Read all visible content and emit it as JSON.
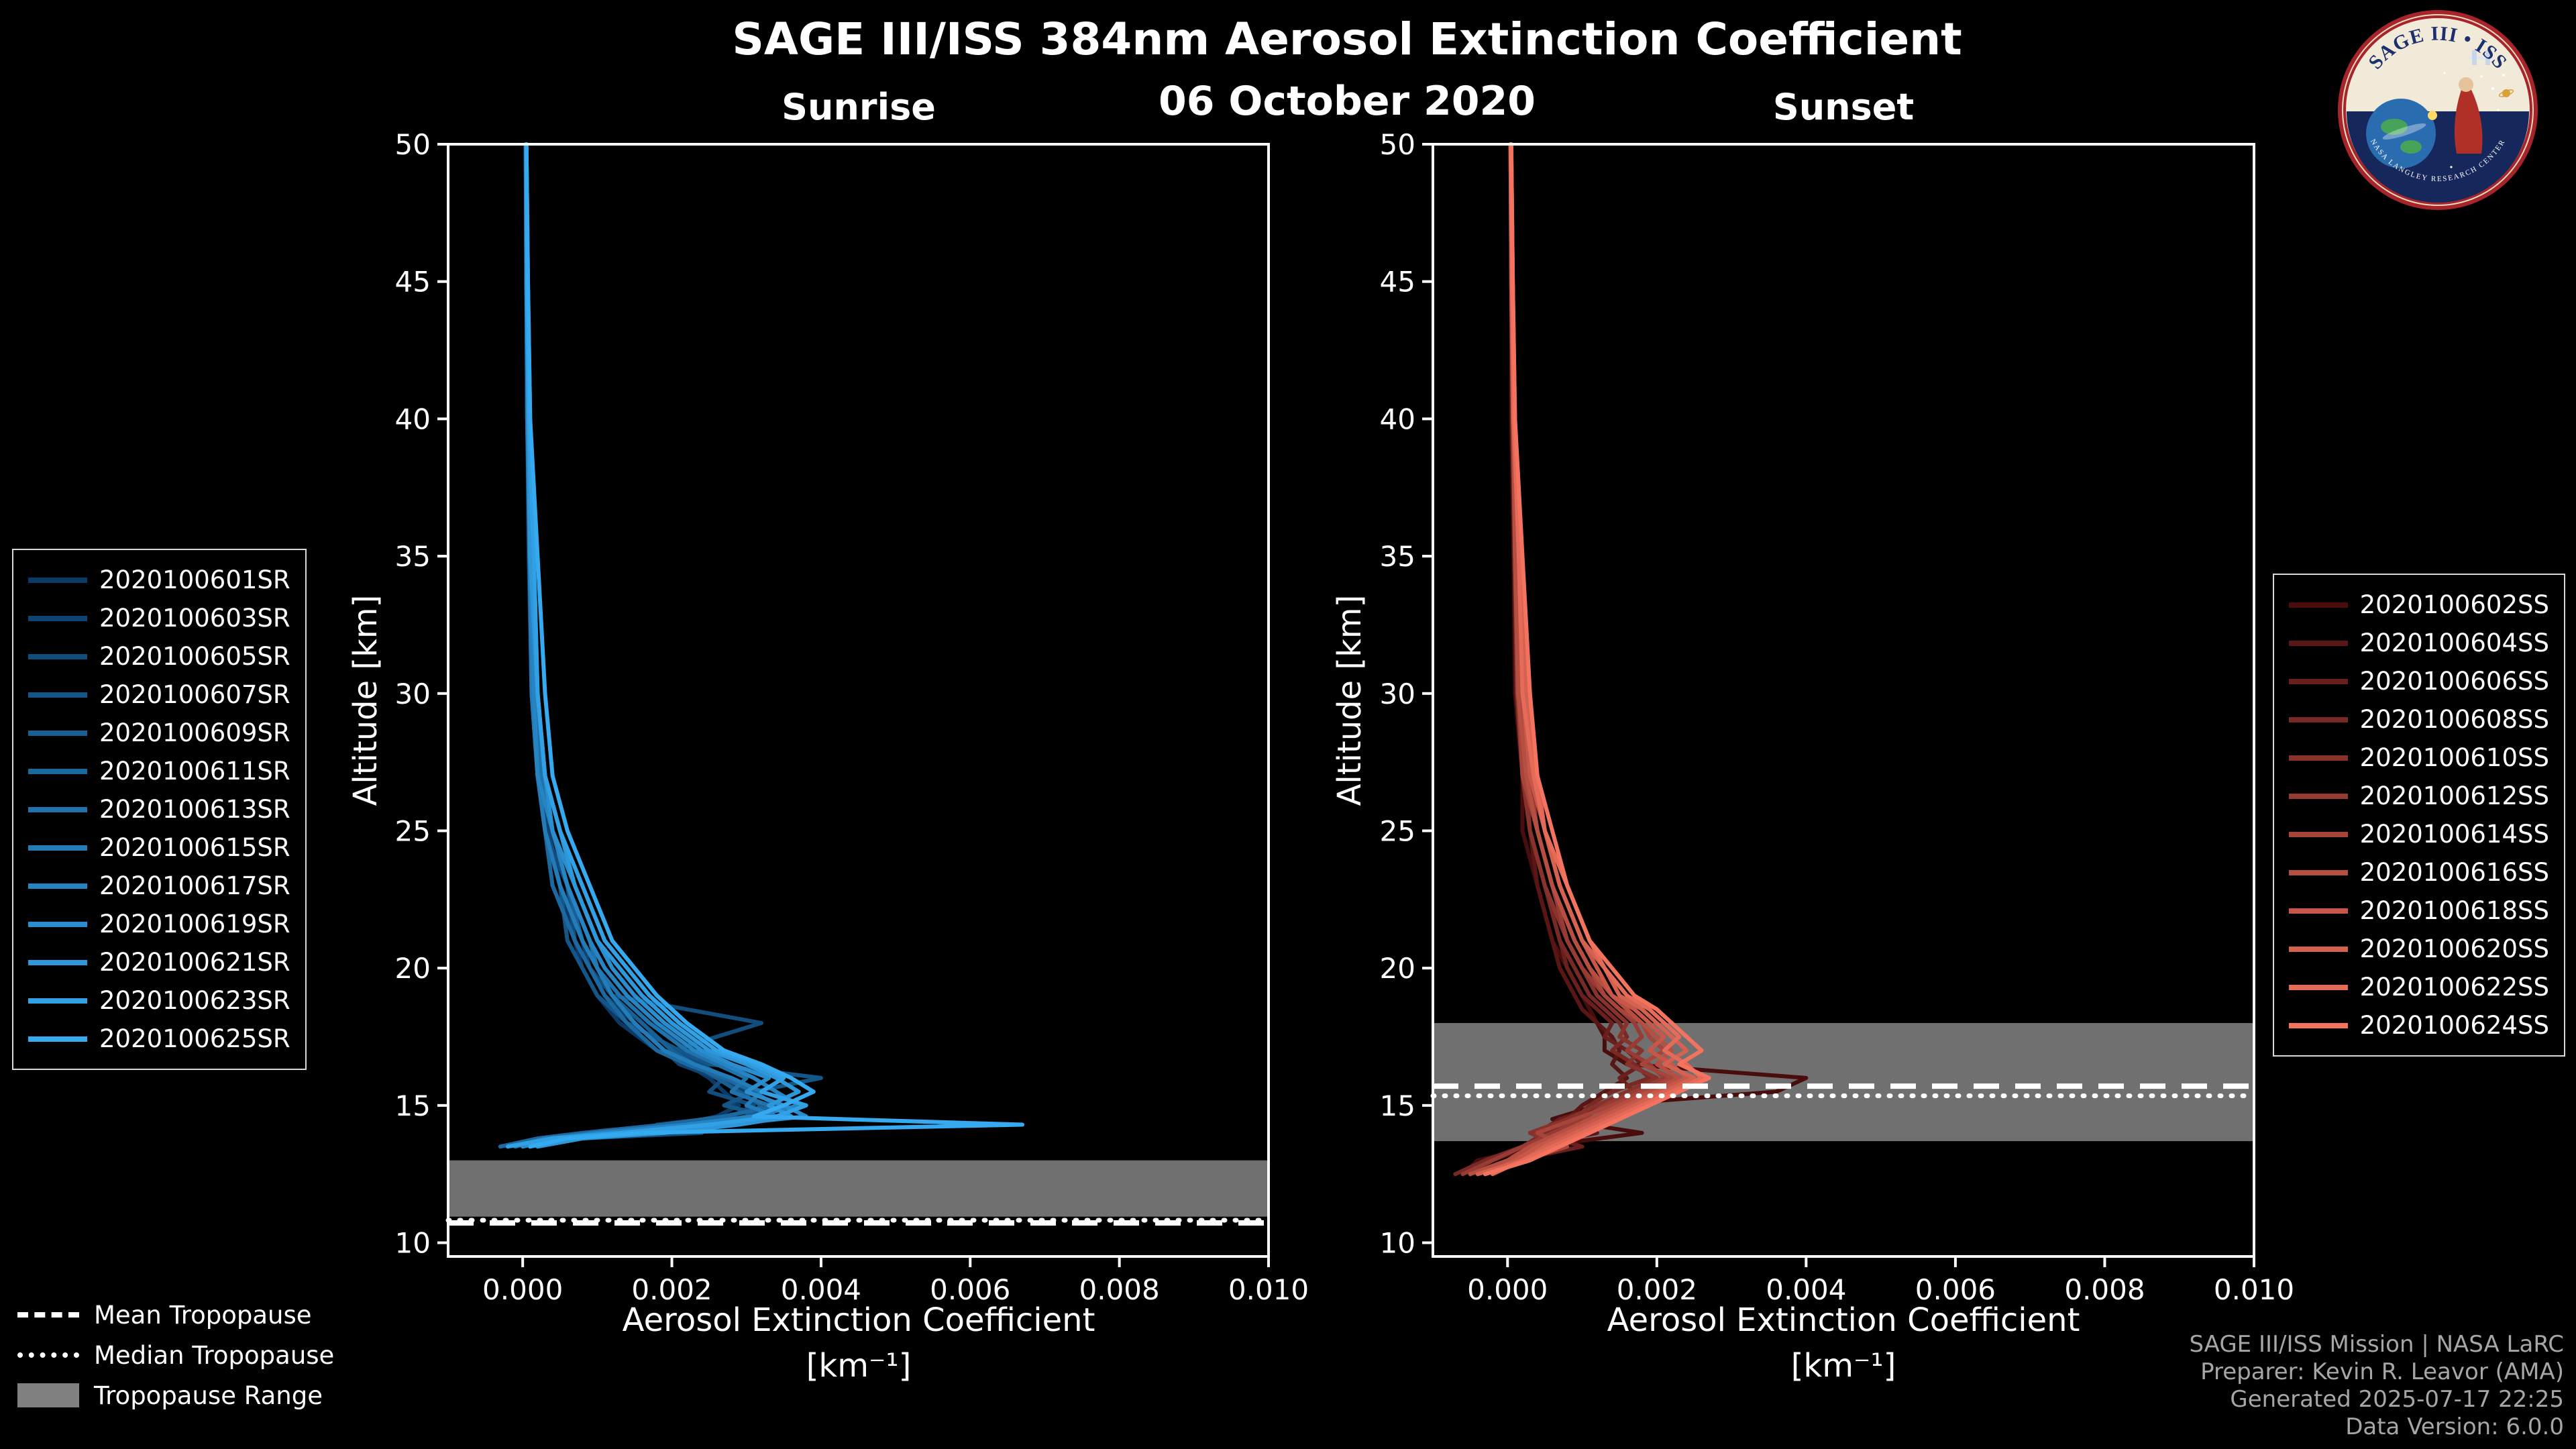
{
  "header": {
    "title": "SAGE III/ISS 384nm Aerosol Extinction Coefficient",
    "date": "06 October 2020"
  },
  "logo": {
    "title": "SAGE III • ISS",
    "ring_text": "NASA LANGLEY RESEARCH CENTER"
  },
  "tropopause_legend": {
    "mean": "Mean Tropopause",
    "median": "Median Tropopause",
    "range": "Tropopause Range"
  },
  "footer": {
    "lines": [
      "SAGE III/ISS Mission | NASA LaRC",
      "Preparer: Kevin R. Leavor (AMA)",
      "Generated 2025-07-17 22:25",
      "Data Version: 6.0.0"
    ]
  },
  "chart_data": {
    "type": "line",
    "background": "#000000",
    "axis_color": "#ffffff",
    "band_color": "#808080",
    "x_axis": {
      "label_line1": "Aerosol Extinction Coefficient",
      "label_line2": "[km⁻¹]",
      "range": [
        -0.001,
        0.01
      ],
      "ticks": [
        0.0,
        0.002,
        0.004,
        0.006,
        0.008,
        0.01
      ],
      "tick_labels": [
        "0.000",
        "0.002",
        "0.004",
        "0.006",
        "0.008",
        "0.010"
      ]
    },
    "y_axis": {
      "label": "Altitude [km]",
      "range": [
        9.5,
        50
      ],
      "ticks": [
        10,
        15,
        20,
        25,
        30,
        35,
        40,
        45,
        50
      ],
      "tick_labels": [
        "10",
        "15",
        "20",
        "25",
        "30",
        "35",
        "40",
        "45",
        "50"
      ]
    },
    "panels": [
      {
        "id": "sunrise",
        "title": "Sunrise",
        "tropopause": {
          "mean_km": 10.72,
          "median_km": 10.82,
          "range_km": [
            10.95,
            13.0
          ]
        },
        "altitude_grid_km": [
          50,
          45,
          40,
          35,
          30,
          27,
          25,
          23,
          21,
          20,
          19,
          18,
          17,
          16.5,
          16,
          15.5,
          15,
          14.6,
          14.3,
          14,
          13.8,
          13.5
        ],
        "series": [
          {
            "name": "2020100601SR",
            "color": "#0a3a66",
            "extinction": [
              5e-05,
              5e-05,
              6e-05,
              8e-05,
              0.00012,
              0.0002,
              0.0003,
              0.0005,
              0.0007,
              0.0008,
              0.001,
              0.0013,
              0.0018,
              0.0022,
              0.0025,
              0.0027,
              0.0029,
              0.0026,
              0.0021,
              0.0012,
              0.0005,
              0.0001
            ]
          },
          {
            "name": "2020100603SR",
            "color": "#0e4372",
            "extinction": [
              5e-05,
              6e-05,
              7e-05,
              0.0001,
              0.00015,
              0.00022,
              0.00035,
              0.0005,
              0.0008,
              0.0009,
              0.0011,
              0.0015,
              0.0019,
              0.0021,
              0.0026,
              0.003,
              0.0028,
              0.0031,
              0.0022,
              0.0009,
              0.0003,
              -0.0002
            ]
          },
          {
            "name": "2020100605SR",
            "color": "#114d7d",
            "extinction": [
              4e-05,
              5e-05,
              6e-05,
              9e-05,
              0.00013,
              0.00025,
              0.0003,
              0.0006,
              0.0007,
              0.0009,
              0.0012,
              0.0032,
              0.002,
              0.0024,
              0.0027,
              0.0025,
              0.0031,
              0.0028,
              0.0018,
              0.0024,
              0.0008,
              0.0002
            ]
          },
          {
            "name": "2020100607SR",
            "color": "#155689",
            "extinction": [
              5e-05,
              5e-05,
              7e-05,
              0.0001,
              0.00014,
              0.0002,
              0.0003,
              0.0005,
              0.0006,
              0.0008,
              0.001,
              0.0014,
              0.0021,
              0.0025,
              0.004,
              0.0031,
              0.0027,
              0.0033,
              0.0025,
              0.0014,
              0.0004,
              0.0
            ]
          },
          {
            "name": "2020100609SR",
            "color": "#185f94",
            "extinction": [
              5e-05,
              6e-05,
              6e-05,
              0.0001,
              0.00013,
              0.0002,
              0.0004,
              0.0006,
              0.0008,
              0.001,
              0.0012,
              0.0016,
              0.002,
              0.0023,
              0.0026,
              0.0029,
              0.0032,
              0.003,
              0.0024,
              0.0016,
              0.0006,
              0.0001
            ]
          },
          {
            "name": "2020100611SR",
            "color": "#1c68a0",
            "extinction": [
              5e-05,
              7e-05,
              8e-05,
              0.0001,
              0.00012,
              0.0002,
              0.0003,
              0.0004,
              0.0007,
              0.0009,
              0.0011,
              0.0014,
              0.0018,
              0.0022,
              0.0027,
              0.0031,
              0.0034,
              0.0027,
              0.0019,
              0.0008,
              0.0002,
              -0.0003
            ]
          },
          {
            "name": "2020100613SR",
            "color": "#1f72ab",
            "extinction": [
              5e-05,
              5e-05,
              7e-05,
              0.0001,
              0.00016,
              0.00025,
              0.0004,
              0.0006,
              0.0009,
              0.001,
              0.0013,
              0.0017,
              0.0022,
              0.0026,
              0.003,
              0.0028,
              0.0033,
              0.0036,
              0.0028,
              0.0018,
              0.0007,
              0.0002
            ]
          },
          {
            "name": "2020100615SR",
            "color": "#237bb7",
            "extinction": [
              4e-05,
              5e-05,
              6e-05,
              9e-05,
              0.00012,
              0.0002,
              0.0003,
              0.0005,
              0.0008,
              0.001,
              0.0012,
              0.0015,
              0.0019,
              0.0023,
              0.0028,
              0.0032,
              0.003,
              0.0034,
              0.0026,
              0.0012,
              0.0003,
              -0.0001
            ]
          },
          {
            "name": "2020100617SR",
            "color": "#2684c2",
            "extinction": [
              5e-05,
              6e-05,
              7e-05,
              0.0001,
              0.00015,
              0.0002,
              0.0004,
              0.0006,
              0.0009,
              0.0011,
              0.0014,
              0.0018,
              0.0023,
              0.0027,
              0.0031,
              0.0034,
              0.0037,
              0.0031,
              0.0022,
              0.001,
              0.0004,
              0.0001
            ]
          },
          {
            "name": "2020100619SR",
            "color": "#2a8dce",
            "extinction": [
              5e-05,
              7e-05,
              0.0001,
              0.00015,
              0.0002,
              0.0003,
              0.0004,
              0.0007,
              0.001,
              0.0012,
              0.0015,
              0.0019,
              0.0024,
              0.0028,
              0.0033,
              0.003,
              0.0035,
              0.0038,
              0.0027,
              0.0015,
              0.0005,
              0.0
            ]
          },
          {
            "name": "2020100621SR",
            "color": "#2d97d9",
            "extinction": [
              5e-05,
              5e-05,
              8e-05,
              0.0001,
              0.0002,
              0.0003,
              0.0005,
              0.0007,
              0.001,
              0.0013,
              0.0016,
              0.002,
              0.0025,
              0.003,
              0.0034,
              0.0037,
              0.0033,
              0.0036,
              0.0029,
              0.0019,
              0.0008,
              0.0002
            ]
          },
          {
            "name": "2020100623SR",
            "color": "#31a0e5",
            "extinction": [
              5e-05,
              6e-05,
              8e-05,
              0.00015,
              0.0002,
              0.0003,
              0.0005,
              0.0008,
              0.0011,
              0.0014,
              0.0017,
              0.0021,
              0.0026,
              0.0031,
              0.0035,
              0.0032,
              0.0038,
              0.0034,
              0.0025,
              0.0013,
              0.0004,
              -0.0002
            ]
          },
          {
            "name": "2020100625SR",
            "color": "#35aaf0",
            "extinction": [
              5e-05,
              7e-05,
              0.0001,
              0.0002,
              0.0003,
              0.0004,
              0.0006,
              0.0009,
              0.0012,
              0.0015,
              0.0018,
              0.0022,
              0.0027,
              0.0032,
              0.0036,
              0.0039,
              0.0035,
              0.0031,
              0.0067,
              0.0016,
              0.0006,
              0.0001
            ]
          }
        ]
      },
      {
        "id": "sunset",
        "title": "Sunset",
        "tropopause": {
          "mean_km": 15.7,
          "median_km": 15.35,
          "range_km": [
            13.7,
            18.0
          ]
        },
        "altitude_grid_km": [
          50,
          45,
          40,
          35,
          30,
          27,
          25,
          23,
          21,
          20,
          19,
          18.5,
          18,
          17.5,
          17,
          16.5,
          16,
          15.5,
          15,
          14.5,
          14,
          13.5,
          13,
          12.5
        ],
        "series": [
          {
            "name": "2020100602SS",
            "color": "#4a0d0d",
            "extinction": [
              4e-05,
              5e-05,
              5e-05,
              8e-05,
              0.0001,
              0.0002,
              0.0002,
              0.0004,
              0.0006,
              0.0008,
              0.001,
              0.0011,
              0.0012,
              0.0013,
              0.0013,
              0.0016,
              0.004,
              0.0036,
              0.0012,
              0.0006,
              0.0018,
              0.0004,
              -0.0004,
              -0.0006
            ]
          },
          {
            "name": "2020100604SS",
            "color": "#591614",
            "extinction": [
              5e-05,
              5e-05,
              7e-05,
              0.0001,
              0.00015,
              0.0002,
              0.0003,
              0.0004,
              0.0006,
              0.0007,
              0.0009,
              0.001,
              0.0012,
              0.0014,
              0.0015,
              0.0014,
              0.0016,
              0.0013,
              0.001,
              0.0008,
              0.0012,
              0.0003,
              -0.0002,
              -0.0005
            ]
          },
          {
            "name": "2020100606SS",
            "color": "#691f1c",
            "extinction": [
              4e-05,
              5e-05,
              6e-05,
              9e-05,
              0.00012,
              0.0002,
              0.0003,
              0.0005,
              0.0007,
              0.0008,
              0.001,
              0.0012,
              0.0014,
              0.0013,
              0.0016,
              0.0018,
              0.0015,
              0.0017,
              0.0013,
              0.0007,
              0.0004,
              0.001,
              0.0001,
              -0.0004
            ]
          },
          {
            "name": "2020100608SS",
            "color": "#782925",
            "extinction": [
              5e-05,
              7e-05,
              8e-05,
              0.0001,
              0.00015,
              0.00025,
              0.0003,
              0.0005,
              0.0007,
              0.0009,
              0.0011,
              0.0013,
              0.0015,
              0.0016,
              0.0014,
              0.0017,
              0.0019,
              0.0014,
              0.0011,
              0.0009,
              0.0005,
              0.0002,
              -0.0003,
              -0.0007
            ]
          },
          {
            "name": "2020100610SS",
            "color": "#88322c",
            "extinction": [
              4e-05,
              5e-05,
              7e-05,
              0.0001,
              0.00013,
              0.0002,
              0.0003,
              0.0005,
              0.0008,
              0.001,
              0.0012,
              0.0014,
              0.0016,
              0.0015,
              0.0018,
              0.0016,
              0.002,
              0.0016,
              0.0012,
              0.0008,
              0.0003,
              0.0007,
              0.0,
              -0.0005
            ]
          },
          {
            "name": "2020100612SS",
            "color": "#973b34",
            "extinction": [
              5e-05,
              6e-05,
              8e-05,
              0.00015,
              0.0002,
              0.0003,
              0.0004,
              0.0006,
              0.0008,
              0.001,
              0.0013,
              0.0015,
              0.0017,
              0.0018,
              0.0016,
              0.0019,
              0.0021,
              0.0017,
              0.0013,
              0.001,
              0.0006,
              0.0002,
              -0.0002,
              -0.0006
            ]
          },
          {
            "name": "2020100614SS",
            "color": "#a7453a",
            "extinction": [
              5e-05,
              7e-05,
              8e-05,
              0.0001,
              0.00015,
              0.0002,
              0.0004,
              0.0006,
              0.0009,
              0.0011,
              0.0013,
              0.0015,
              0.0018,
              0.0019,
              0.0021,
              0.0018,
              0.0022,
              0.0018,
              0.0014,
              0.0009,
              0.0004,
              0.0008,
              0.0002,
              -0.0004
            ]
          },
          {
            "name": "2020100616SS",
            "color": "#b64e42",
            "extinction": [
              4e-05,
              5e-05,
              7e-05,
              0.0001,
              0.00014,
              0.00025,
              0.0004,
              0.0006,
              0.0009,
              0.0011,
              0.0014,
              0.0016,
              0.0018,
              0.002,
              0.0022,
              0.002,
              0.0023,
              0.0019,
              0.0015,
              0.0011,
              0.0007,
              0.0003,
              0.0,
              -0.0005
            ]
          },
          {
            "name": "2020100618SS",
            "color": "#c65749",
            "extinction": [
              5e-05,
              6e-05,
              8e-05,
              0.00015,
              0.0002,
              0.0003,
              0.0005,
              0.0007,
              0.001,
              0.0012,
              0.0014,
              0.0017,
              0.0019,
              0.0021,
              0.0019,
              0.0022,
              0.0024,
              0.002,
              0.0016,
              0.0012,
              0.0008,
              0.0004,
              0.0001,
              -0.0003
            ]
          },
          {
            "name": "2020100620SS",
            "color": "#d56151",
            "extinction": [
              5e-05,
              7e-05,
              0.0001,
              0.00015,
              0.00025,
              0.0004,
              0.0005,
              0.0007,
              0.001,
              0.0013,
              0.0015,
              0.0018,
              0.002,
              0.0022,
              0.0024,
              0.0021,
              0.0025,
              0.0021,
              0.0017,
              0.0013,
              0.0009,
              0.0005,
              0.0002,
              -0.0004
            ]
          },
          {
            "name": "2020100622SS",
            "color": "#e56a58",
            "extinction": [
              4e-05,
              6e-05,
              8e-05,
              0.00015,
              0.0002,
              0.00035,
              0.0005,
              0.0008,
              0.0011,
              0.0013,
              0.0016,
              0.0019,
              0.0021,
              0.0023,
              0.0021,
              0.0024,
              0.0026,
              0.0022,
              0.0018,
              0.0014,
              0.001,
              0.0006,
              0.0002,
              -0.0002
            ]
          },
          {
            "name": "2020100624SS",
            "color": "#f4735f",
            "extinction": [
              5e-05,
              7e-05,
              0.0001,
              0.0002,
              0.0003,
              0.0004,
              0.0006,
              0.0008,
              0.0011,
              0.0014,
              0.0017,
              0.002,
              0.0022,
              0.0024,
              0.0026,
              0.0023,
              0.0027,
              0.0023,
              0.0019,
              0.0015,
              0.0011,
              0.0007,
              0.0003,
              -0.0003
            ]
          }
        ]
      }
    ]
  }
}
